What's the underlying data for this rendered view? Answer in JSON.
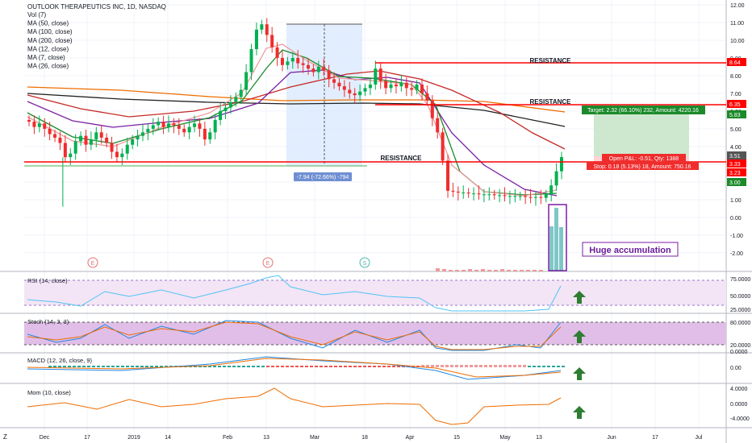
{
  "header": {
    "title": "OUTLOOK THERAPEUTICS INC, 1D, NASDAQ",
    "indicators": [
      "Vol (7)",
      "MA (50, close)",
      "MA (100, close)",
      "MA (200, close)",
      "MA (12, close)",
      "MA (7, close)",
      "MA (26, close)"
    ]
  },
  "colors": {
    "up": "#26a69a",
    "down": "#ef5350",
    "ma50": "#c62828",
    "ma100": "#ef6c00",
    "ma200": "#212121",
    "ma12": "#1b8a2a",
    "ma7": "#ef9a9a",
    "ma26": "#7b1fa2",
    "resistance": "#ff0000",
    "target_fill": "#c8e6c9",
    "stop_fill": "#ffcdd2",
    "measure_fill": "#dbeafe",
    "arrow": "#2e7d32",
    "rsi_band": "#f3e5f5",
    "stoch_band": "#e1bee7",
    "vol_box": "#7b1fa2"
  },
  "annotations": {
    "resistance_labels": [
      "RESISTANCE",
      "RESISTANCE",
      "RESISTANCE"
    ],
    "measure_label": "-7.94 (-72.66%) -794",
    "target_label": "Target: 2.32 (66.10%) 232, Amount: 4220.16",
    "open_pl_label": "Open P&L: -0.51, Qty: 1388",
    "stop_label": "Stop: 0.18 (5.13%) 18, Amount: 750.16",
    "accumulation_label": "Huge accumulation",
    "event_markers": [
      "E",
      "E",
      "S"
    ]
  },
  "panes": {
    "rsi": "RSI (14, close)",
    "stoch": "Stoch (14, 3, 3)",
    "macd": "MACD (12, 26, close, 9)",
    "mom": "Mom (10, close)"
  },
  "price_axis": {
    "ticks": [
      "12.00",
      "11.00",
      "10.00",
      "9.00",
      "8.00",
      "7.00",
      "6.00",
      "5.00",
      "4.00",
      "3.00",
      "2.00",
      "1.00",
      "0.00",
      "-1.00",
      "-2.00"
    ],
    "badges": [
      {
        "text": "8.64",
        "color": "#ff0000"
      },
      {
        "text": "6.35",
        "color": "#ff0000"
      },
      {
        "text": "5.83",
        "color": "#1b8a2a"
      },
      {
        "text": "3.51",
        "color": "#555555"
      },
      {
        "text": "3.33",
        "color": "#ff0000"
      },
      {
        "text": "3.23",
        "color": "#ff0000"
      },
      {
        "text": "3.00",
        "color": "#1b8a2a"
      }
    ]
  },
  "rsi_axis": [
    "75.0000",
    "50.0000",
    "25.0000"
  ],
  "stoch_axis": [
    "80.0000",
    "20.0000",
    "0.0000"
  ],
  "macd_axis": [
    "0.00"
  ],
  "mom_axis": [
    "4.0000",
    "0.0000",
    "-4.0000"
  ],
  "x_axis": {
    "ticks": [
      "Dec",
      "17",
      "2019",
      "14",
      "Feb",
      "13",
      "Mar",
      "18",
      "Apr",
      "15",
      "May",
      "13",
      "Jun",
      "17",
      "Jul"
    ]
  },
  "chart_data": {
    "type": "candlestick",
    "title": "OUTLOOK THERAPEUTICS INC, 1D, NASDAQ",
    "ylim": [
      -2.5,
      12.2
    ],
    "close_series": [
      5.4,
      5.1,
      5.3,
      5.0,
      4.7,
      4.5,
      4.2,
      3.4,
      3.6,
      4.3,
      4.6,
      4.1,
      4.4,
      4.8,
      4.5,
      4.2,
      3.7,
      3.4,
      3.6,
      4.1,
      4.4,
      4.6,
      4.8,
      5.0,
      5.2,
      5.4,
      5.1,
      5.3,
      5.2,
      5.0,
      4.8,
      5.1,
      5.3,
      5.0,
      4.4,
      4.8,
      5.5,
      6.0,
      6.2,
      6.5,
      6.8,
      7.2,
      8.2,
      9.5,
      10.6,
      10.9,
      10.3,
      9.6,
      9.0,
      8.6,
      8.8,
      9.0,
      8.7,
      8.6,
      8.4,
      8.2,
      8.5,
      8.3,
      7.8,
      7.6,
      7.4,
      7.2,
      7.0,
      6.9,
      7.1,
      7.3,
      7.5,
      8.4,
      7.7,
      7.3,
      7.5,
      7.4,
      7.6,
      7.3,
      7.2,
      7.5,
      7.0,
      6.6,
      5.6,
      4.8,
      3.2,
      1.5,
      1.45,
      1.4,
      1.4,
      1.35,
      1.35,
      1.3,
      1.3,
      1.3,
      1.25,
      1.25,
      1.2,
      1.2,
      1.2,
      1.2,
      1.15,
      1.1,
      1.15,
      1.1,
      1.3,
      1.8,
      2.6,
      3.4
    ],
    "resistance_levels": [
      8.64,
      6.35,
      3.33
    ],
    "position": {
      "entry": 3.51,
      "target": 5.83,
      "stop": 3.33
    }
  }
}
